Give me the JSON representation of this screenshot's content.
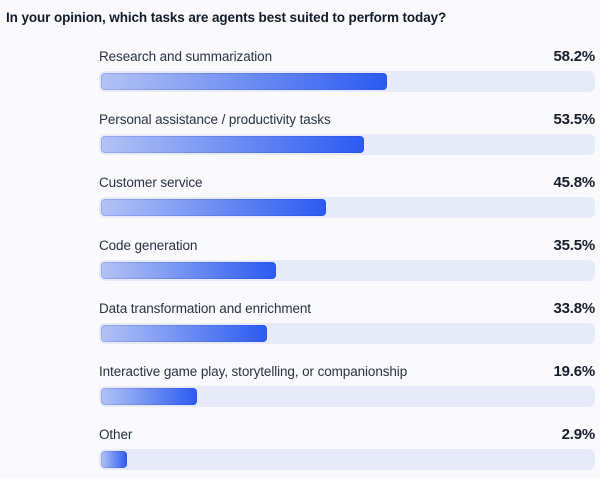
{
  "title": "In your opinion, which tasks are agents best suited to perform today?",
  "colors": {
    "page_bg": "#FAFAFD",
    "track": "#E7EBF9",
    "bar_gradient_start": "#B4C3F4",
    "bar_gradient_end": "#2B5AF0",
    "title_text": "#101C28",
    "label_text": "#273341",
    "value_text": "#161F2B"
  },
  "chart_data": {
    "type": "bar",
    "orientation": "horizontal",
    "title": "In your opinion, which tasks are agents best suited to perform today?",
    "categories": [
      "Research and summarization",
      "Personal assistance / productivity tasks",
      "Customer service",
      "Code generation",
      "Data transformation and enrichment",
      "Interactive game play, storytelling, or companionship",
      "Other"
    ],
    "values": [
      58.2,
      53.5,
      45.8,
      35.5,
      33.8,
      19.6,
      2.9
    ],
    "value_labels": [
      "58.2%",
      "53.5%",
      "45.8%",
      "35.5%",
      "33.8%",
      "19.6%",
      "2.9%"
    ],
    "value_suffix": "%",
    "xlim": [
      0,
      100
    ],
    "grid": false,
    "legend": false,
    "bar_style": "gradient light-blue to blue on light track"
  }
}
